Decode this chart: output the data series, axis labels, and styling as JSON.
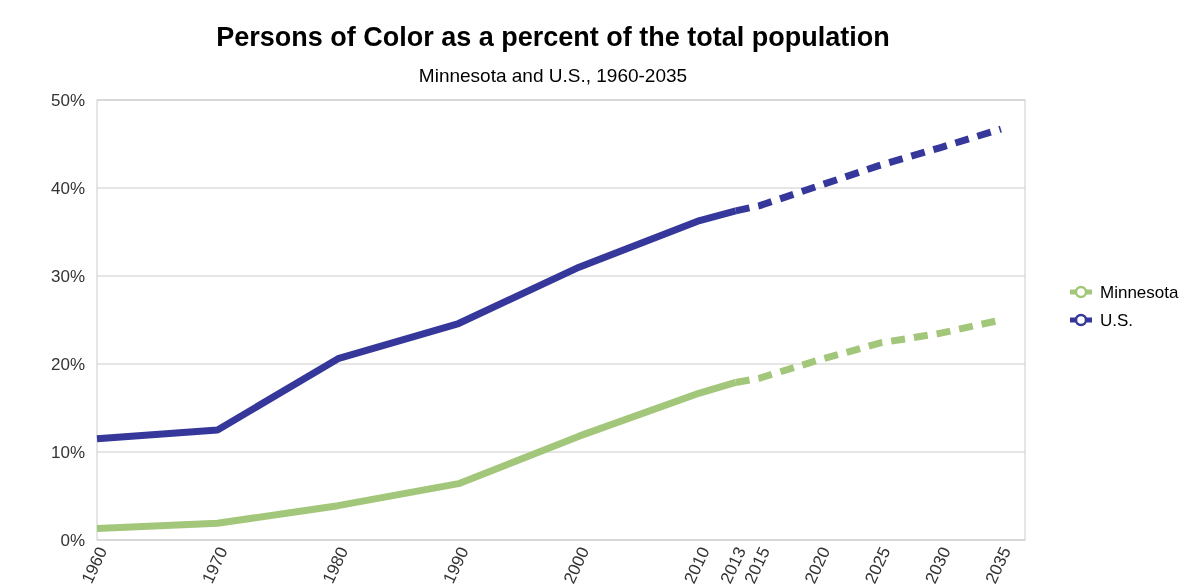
{
  "chart_data": {
    "type": "line",
    "title": "Persons of Color as a percent of the total population",
    "subtitle": "Minnesota and U.S., 1960-2035",
    "xlim": [
      1960,
      2037
    ],
    "xticks": [
      1960,
      1970,
      1980,
      1990,
      2000,
      2010,
      2013,
      2015,
      2020,
      2025,
      2030,
      2035
    ],
    "ylim": [
      0,
      50
    ],
    "yticks": [
      {
        "value": 0,
        "label": "0%"
      },
      {
        "value": 10,
        "label": "10%"
      },
      {
        "value": 20,
        "label": "20%"
      },
      {
        "value": 30,
        "label": "30%"
      },
      {
        "value": 40,
        "label": "40%"
      },
      {
        "value": 50,
        "label": "50%"
      }
    ],
    "grid": "y",
    "legend": "right",
    "marker": "none",
    "series": [
      {
        "name": "Minnesota",
        "color": "#a3c77a",
        "line_style": "solid",
        "x": [
          1960,
          1970,
          1980,
          1990,
          2000,
          2010,
          2013
        ],
        "values": [
          1.3,
          1.9,
          3.9,
          6.4,
          11.8,
          16.7,
          17.9
        ]
      },
      {
        "name": "U.S.",
        "color": "#35379a",
        "line_style": "solid",
        "x": [
          1960,
          1970,
          1980,
          1990,
          2000,
          2010,
          2013
        ],
        "values": [
          11.5,
          12.5,
          20.6,
          24.6,
          31,
          36.3,
          37.4
        ]
      },
      {
        "color": "#a3c77a",
        "line_style": "dashed",
        "x": [
          2013,
          2015,
          2020,
          2025,
          2030,
          2035
        ],
        "values": [
          17.9,
          18.4,
          20.5,
          22.4,
          23.5,
          25
        ]
      },
      {
        "color": "#35379a",
        "line_style": "dashed",
        "x": [
          2013,
          2015,
          2020,
          2025,
          2030,
          2035
        ],
        "values": [
          37.4,
          38,
          40.3,
          42.6,
          44.6,
          46.7
        ]
      }
    ]
  }
}
